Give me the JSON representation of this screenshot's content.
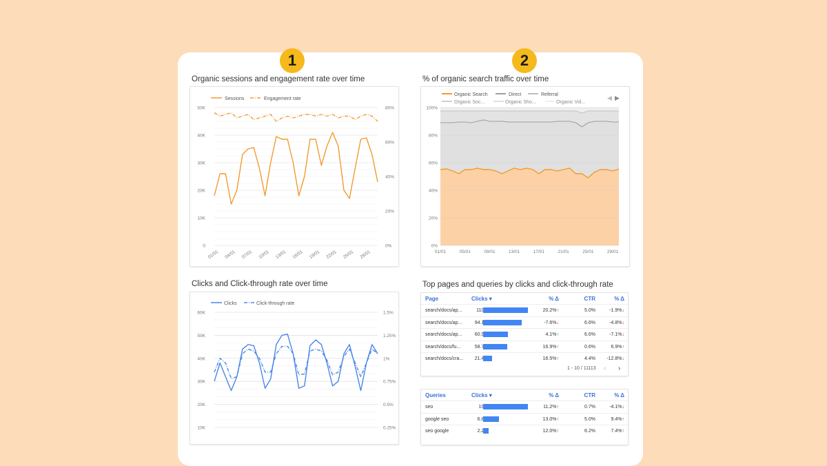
{
  "colors": {
    "background": "#FDDDB9",
    "badge": "#F6B91B",
    "sessions": "#F29A2E",
    "clicks": "#4A86E8",
    "bars": "#4285F4"
  },
  "badges": [
    "1",
    "2"
  ],
  "panels": {
    "sessions_chart": {
      "title": "Organic sessions and engagement rate over time",
      "legend": [
        "Sessions",
        "Engagement rate"
      ],
      "y_left_ticks": [
        "50K",
        "40K",
        "30K",
        "20K",
        "10K",
        "0"
      ],
      "y_right_ticks": [
        "80%",
        "60%",
        "40%",
        "20%",
        "0%"
      ],
      "x_ticks": [
        "01/01",
        "04/01",
        "07/01",
        "10/01",
        "13/01",
        "16/01",
        "19/01",
        "22/01",
        "25/01",
        "28/01"
      ]
    },
    "traffic_chart": {
      "title": "% of organic search traffic over time",
      "legend": [
        "Organic Search",
        "Direct",
        "Referral",
        "Organic Soc...",
        "Organic Sho...",
        "Organic Vid..."
      ],
      "y_ticks": [
        "100%",
        "80%",
        "60%",
        "40%",
        "20%",
        "0%"
      ],
      "x_ticks": [
        "01/01",
        "05/01",
        "09/01",
        "13/01",
        "17/01",
        "21/01",
        "25/01",
        "29/01"
      ]
    },
    "clicks_chart": {
      "title": "Clicks and Click-through rate over time",
      "legend": [
        "Clicks",
        "Click-through rate"
      ],
      "y_left_ticks": [
        "60K",
        "50K",
        "40K",
        "30K",
        "20K",
        "10K"
      ],
      "y_right_ticks": [
        "1.5%",
        "1.25%",
        "1%",
        "0.75%",
        "0.5%",
        "0.25%"
      ]
    },
    "top_pages": {
      "title": "Top pages and queries by clicks and click-through rate",
      "pages_table": {
        "headers": [
          "Page",
          "Clicks ▾",
          "% Δ",
          "CTR",
          "% Δ"
        ],
        "rows": [
          {
            "page": "search/docs/ap...",
            "clicks": "110K",
            "delta": "20.2%",
            "dir": "up",
            "ctr": "5.0%",
            "ctr_delta": "-1.9%",
            "ctr_dir": "down",
            "bar": 1.0
          },
          {
            "page": "search/docs/ap...",
            "clicks": "94.1K",
            "delta": "-7.6%",
            "dir": "down",
            "ctr": "6.6%",
            "ctr_delta": "-4.8%",
            "ctr_dir": "down",
            "bar": 0.856
          },
          {
            "page": "search/docs/ap...",
            "clicks": "60.9K",
            "delta": "4.1%",
            "dir": "up",
            "ctr": "6.6%",
            "ctr_delta": "-7.1%",
            "ctr_dir": "down",
            "bar": 0.554
          },
          {
            "page": "search/docs/fu...",
            "clicks": "58.7K",
            "delta": "16.9%",
            "dir": "up",
            "ctr": "0.6%",
            "ctr_delta": "6.9%",
            "ctr_dir": "up",
            "bar": 0.534
          },
          {
            "page": "search/docs/cra...",
            "clicks": "21.4K",
            "delta": "16.5%",
            "dir": "up",
            "ctr": "4.4%",
            "ctr_delta": "-12.8%",
            "ctr_dir": "down",
            "bar": 0.195
          }
        ],
        "pagination": "1 - 10 / 11113"
      },
      "queries_table": {
        "headers": [
          "Queries",
          "Clicks ▾",
          "% Δ",
          "CTR",
          "% Δ"
        ],
        "rows": [
          {
            "page": "seo",
            "clicks": "19K",
            "delta": "11.2%",
            "dir": "up",
            "ctr": "0.7%",
            "ctr_delta": "-4.1%",
            "ctr_dir": "down",
            "bar": 1.0
          },
          {
            "page": "google seo",
            "clicks": "6.8K",
            "delta": "13.0%",
            "dir": "up",
            "ctr": "5.0%",
            "ctr_delta": "9.4%",
            "ctr_dir": "up",
            "bar": 0.358
          },
          {
            "page": "seo google",
            "clicks": "2.2K",
            "delta": "12.0%",
            "dir": "up",
            "ctr": "6.2%",
            "ctr_delta": "7.4%",
            "ctr_dir": "up",
            "bar": 0.116
          }
        ]
      }
    }
  },
  "chart_data": [
    {
      "type": "line",
      "x": [
        "01/01",
        "02/01",
        "03/01",
        "04/01",
        "05/01",
        "06/01",
        "07/01",
        "08/01",
        "09/01",
        "10/01",
        "11/01",
        "12/01",
        "13/01",
        "14/01",
        "15/01",
        "16/01",
        "17/01",
        "18/01",
        "19/01",
        "20/01",
        "21/01",
        "22/01",
        "23/01",
        "24/01",
        "25/01",
        "26/01",
        "27/01",
        "28/01",
        "29/01",
        "30/01"
      ],
      "series": [
        {
          "name": "Sessions",
          "axis": "left",
          "values": [
            18000,
            26000,
            26000,
            15000,
            20000,
            33000,
            35000,
            35500,
            28000,
            18000,
            30000,
            39500,
            38500,
            38500,
            30000,
            18000,
            25000,
            38500,
            38500,
            29000,
            36000,
            41000,
            36000,
            20000,
            17000,
            28000,
            38500,
            39000,
            33000,
            23000
          ]
        },
        {
          "name": "Engagement rate",
          "axis": "right",
          "values": [
            77,
            75,
            76,
            77,
            74,
            75,
            76,
            73,
            74,
            75,
            76,
            72,
            74,
            75,
            74,
            75,
            76,
            76,
            75,
            76,
            75,
            76,
            74,
            75,
            75,
            73,
            75,
            76,
            75,
            72
          ]
        }
      ],
      "ylim_left": [
        0,
        50000
      ],
      "ylim_right": [
        0,
        80
      ]
    },
    {
      "type": "area",
      "x": [
        "01/01",
        "02/01",
        "03/01",
        "04/01",
        "05/01",
        "06/01",
        "07/01",
        "08/01",
        "09/01",
        "10/01",
        "11/01",
        "12/01",
        "13/01",
        "14/01",
        "15/01",
        "16/01",
        "17/01",
        "18/01",
        "19/01",
        "20/01",
        "21/01",
        "22/01",
        "23/01",
        "24/01",
        "25/01",
        "26/01",
        "27/01",
        "28/01",
        "29/01",
        "30/01"
      ],
      "series": [
        {
          "name": "Organic Search",
          "values": [
            55,
            55.5,
            54,
            52,
            55,
            55,
            56,
            55,
            55,
            54,
            52,
            54,
            56,
            55,
            56,
            55,
            52,
            55,
            55,
            54,
            55,
            56,
            52,
            52,
            49,
            53,
            55,
            55,
            54,
            55.5
          ]
        },
        {
          "name": "Direct",
          "values": [
            89,
            89,
            89,
            89.5,
            89.5,
            89,
            90,
            91,
            90,
            90,
            90,
            89.5,
            89.5,
            89.5,
            89.5,
            89.5,
            89.5,
            89.5,
            89.5,
            90,
            90,
            90,
            89,
            86,
            89,
            90,
            90,
            90,
            89.5,
            89.5
          ]
        },
        {
          "name": "Referral",
          "values": [
            97.5,
            97.5,
            97.5,
            97.5,
            97.5,
            97.5,
            97.5,
            97.5,
            97.5,
            97.5,
            97.5,
            97.5,
            97.5,
            97.5,
            97.5,
            97.5,
            97.5,
            97.5,
            97.5,
            97.5,
            97.5,
            97.5,
            97.5,
            96,
            97.5,
            97.5,
            97.5,
            97.5,
            97.5,
            97.5
          ]
        }
      ],
      "ylim": [
        0,
        100
      ]
    },
    {
      "type": "line",
      "x": [
        "01",
        "02",
        "03",
        "04",
        "05",
        "06",
        "07",
        "08",
        "09",
        "10",
        "11",
        "12",
        "13",
        "14",
        "15",
        "16",
        "17",
        "18",
        "19",
        "20",
        "21",
        "22",
        "23",
        "24",
        "25",
        "26",
        "27",
        "28",
        "29",
        "30"
      ],
      "series": [
        {
          "name": "Clicks",
          "axis": "left",
          "values": [
            30000,
            38000,
            32000,
            26000,
            32000,
            44000,
            46000,
            45500,
            38000,
            27000,
            31000,
            46000,
            50000,
            50500,
            42000,
            27000,
            28000,
            45500,
            48000,
            46000,
            38000,
            28000,
            30000,
            42000,
            46000,
            36500,
            26000,
            38000,
            46000,
            42000
          ]
        },
        {
          "name": "Click-through rate",
          "axis": "right",
          "values": [
            0.85,
            1.0,
            0.95,
            0.78,
            0.8,
            1.05,
            1.1,
            1.08,
            1.0,
            0.85,
            0.85,
            1.05,
            1.13,
            1.13,
            1.05,
            0.82,
            0.83,
            1.08,
            1.1,
            1.08,
            0.98,
            0.82,
            0.85,
            1.02,
            1.1,
            0.95,
            0.8,
            0.95,
            1.1,
            1.05
          ]
        }
      ],
      "ylim_left": [
        10000,
        60000
      ],
      "ylim_right": [
        0.25,
        1.5
      ]
    }
  ]
}
